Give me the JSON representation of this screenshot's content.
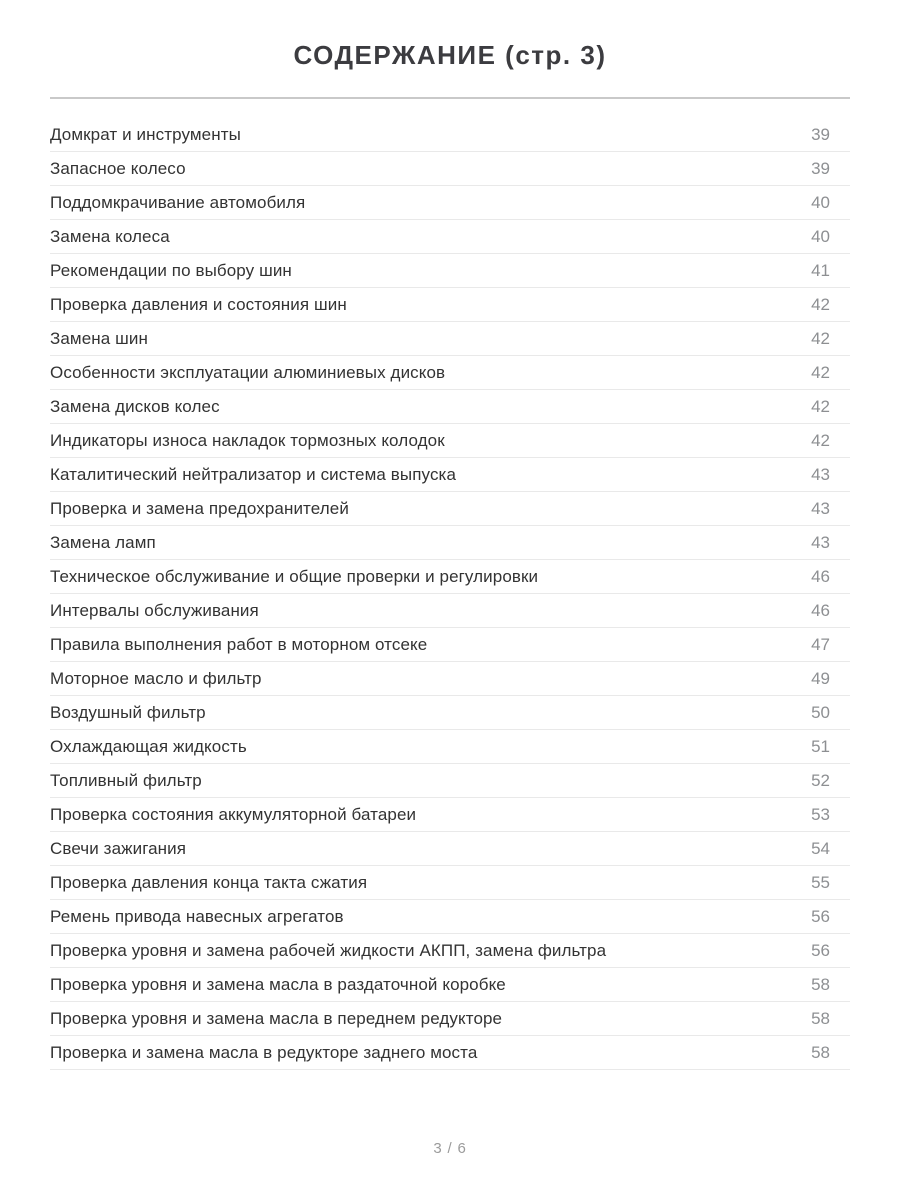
{
  "page": {
    "title": "СОДЕРЖАНИЕ (стр. 3)",
    "footer_page_indicator": "3 / 6"
  },
  "toc": {
    "entries": [
      {
        "label": "Домкрат и инструменты",
        "page": "39"
      },
      {
        "label": "Запасное колесо",
        "page": "39"
      },
      {
        "label": "Поддомкрачивание автомобиля",
        "page": "40"
      },
      {
        "label": "Замена колеса",
        "page": "40"
      },
      {
        "label": "Рекомендации по выбору шин",
        "page": "41"
      },
      {
        "label": "Проверка давления и состояния шин",
        "page": "42"
      },
      {
        "label": "Замена шин",
        "page": "42"
      },
      {
        "label": "Особенности эксплуатации алюминиевых дисков",
        "page": "42"
      },
      {
        "label": "Замена дисков колес",
        "page": "42"
      },
      {
        "label": "Индикаторы износа накладок тормозных колодок",
        "page": "42"
      },
      {
        "label": "Каталитический нейтрализатор и система выпуска",
        "page": "43"
      },
      {
        "label": "Проверка и замена предохранителей",
        "page": "43"
      },
      {
        "label": "Замена ламп",
        "page": "43"
      },
      {
        "label": "Техническое обслуживание и общие проверки и регулировки",
        "page": "46"
      },
      {
        "label": "Интервалы обслуживания",
        "page": "46"
      },
      {
        "label": "Правила выполнения работ в моторном отсеке",
        "page": "47"
      },
      {
        "label": "Моторное масло и фильтр",
        "page": "49"
      },
      {
        "label": "Воздушный фильтр",
        "page": "50"
      },
      {
        "label": "Охлаждающая жидкость",
        "page": "51"
      },
      {
        "label": "Топливный фильтр",
        "page": "52"
      },
      {
        "label": "Проверка состояния аккумуляторной батареи",
        "page": "53"
      },
      {
        "label": "Свечи зажигания",
        "page": "54"
      },
      {
        "label": "Проверка давления конца такта сжатия",
        "page": "55"
      },
      {
        "label": "Ремень привода навесных агрегатов",
        "page": "56"
      },
      {
        "label": "Проверка уровня и замена рабочей жидкости АКПП, замена фильтра",
        "page": "56"
      },
      {
        "label": "Проверка уровня и замена масла в раздаточной коробке",
        "page": "58"
      },
      {
        "label": "Проверка уровня и замена масла в переднем редукторе",
        "page": "58"
      },
      {
        "label": "Проверка и замена масла в редукторе заднего моста",
        "page": "58"
      }
    ]
  },
  "colors": {
    "background": "#ffffff",
    "title_text": "#3c3c40",
    "entry_text": "#333333",
    "page_number_text": "#8d8f92",
    "title_divider": "#c9c9c9",
    "row_separator": "#e9e9e9",
    "footer_text": "#9b9b9b"
  }
}
